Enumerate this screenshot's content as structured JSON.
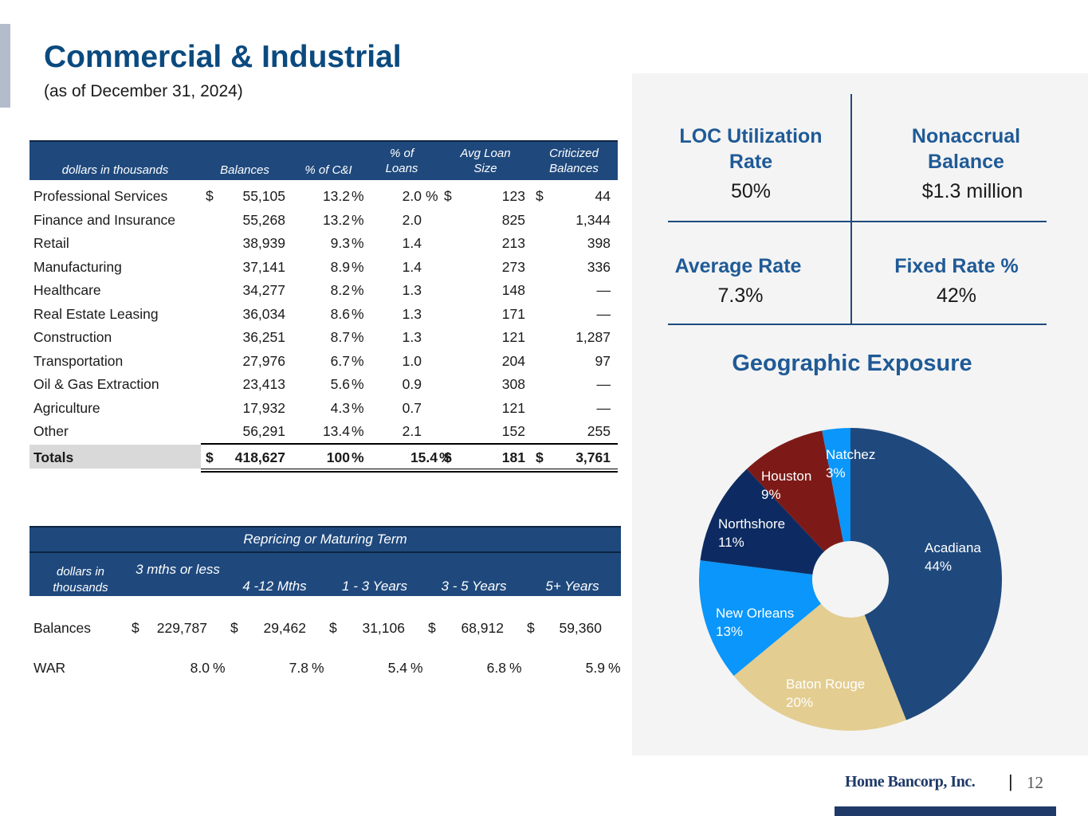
{
  "title": "Commercial & Industrial",
  "subtitle": "(as of December 31, 2024)",
  "industry_table": {
    "headers": {
      "label": "dollars in thousands",
      "balances": "Balances",
      "pct_ci": "% of C&I",
      "pct_loans": "% of Loans",
      "avg_loan": "Avg Loan Size",
      "criticized": "Criticized Balances"
    },
    "rows": [
      {
        "name": "Professional Services",
        "bal_cur": "$",
        "balance": "55,105",
        "pct_ci": "13.2",
        "pct_ci_sym": "%",
        "pct_loans": "2.0",
        "pct_loans_sym": "%",
        "avg_cur": "$",
        "avg": "123",
        "crit_cur": "$",
        "crit": "44"
      },
      {
        "name": "Finance and Insurance",
        "bal_cur": "",
        "balance": "55,268",
        "pct_ci": "13.2",
        "pct_ci_sym": "%",
        "pct_loans": "2.0",
        "pct_loans_sym": "",
        "avg_cur": "",
        "avg": "825",
        "crit_cur": "",
        "crit": "1,344"
      },
      {
        "name": "Retail",
        "bal_cur": "",
        "balance": "38,939",
        "pct_ci": "9.3",
        "pct_ci_sym": "%",
        "pct_loans": "1.4",
        "pct_loans_sym": "",
        "avg_cur": "",
        "avg": "213",
        "crit_cur": "",
        "crit": "398"
      },
      {
        "name": "Manufacturing",
        "bal_cur": "",
        "balance": "37,141",
        "pct_ci": "8.9",
        "pct_ci_sym": "%",
        "pct_loans": "1.4",
        "pct_loans_sym": "",
        "avg_cur": "",
        "avg": "273",
        "crit_cur": "",
        "crit": "336"
      },
      {
        "name": "Healthcare",
        "bal_cur": "",
        "balance": "34,277",
        "pct_ci": "8.2",
        "pct_ci_sym": "%",
        "pct_loans": "1.3",
        "pct_loans_sym": "",
        "avg_cur": "",
        "avg": "148",
        "crit_cur": "",
        "crit": "—"
      },
      {
        "name": "Real Estate Leasing",
        "bal_cur": "",
        "balance": "36,034",
        "pct_ci": "8.6",
        "pct_ci_sym": "%",
        "pct_loans": "1.3",
        "pct_loans_sym": "",
        "avg_cur": "",
        "avg": "171",
        "crit_cur": "",
        "crit": "—"
      },
      {
        "name": "Construction",
        "bal_cur": "",
        "balance": "36,251",
        "pct_ci": "8.7",
        "pct_ci_sym": "%",
        "pct_loans": "1.3",
        "pct_loans_sym": "",
        "avg_cur": "",
        "avg": "121",
        "crit_cur": "",
        "crit": "1,287"
      },
      {
        "name": "Transportation",
        "bal_cur": "",
        "balance": "27,976",
        "pct_ci": "6.7",
        "pct_ci_sym": "%",
        "pct_loans": "1.0",
        "pct_loans_sym": "",
        "avg_cur": "",
        "avg": "204",
        "crit_cur": "",
        "crit": "97"
      },
      {
        "name": "Oil & Gas Extraction",
        "bal_cur": "",
        "balance": "23,413",
        "pct_ci": "5.6",
        "pct_ci_sym": "%",
        "pct_loans": "0.9",
        "pct_loans_sym": "",
        "avg_cur": "",
        "avg": "308",
        "crit_cur": "",
        "crit": "—"
      },
      {
        "name": "Agriculture",
        "bal_cur": "",
        "balance": "17,932",
        "pct_ci": "4.3",
        "pct_ci_sym": "%",
        "pct_loans": "0.7",
        "pct_loans_sym": "",
        "avg_cur": "",
        "avg": "121",
        "crit_cur": "",
        "crit": "—"
      },
      {
        "name": "Other",
        "bal_cur": "",
        "balance": "56,291",
        "pct_ci": "13.4",
        "pct_ci_sym": "%",
        "pct_loans": "2.1",
        "pct_loans_sym": "",
        "avg_cur": "",
        "avg": "152",
        "crit_cur": "",
        "crit": "255"
      }
    ],
    "totals": {
      "name": "Totals",
      "bal_cur": "$",
      "balance": "418,627",
      "pct_ci": "100",
      "pct_ci_sym": "%",
      "pct_loans": "15.4",
      "pct_loans_sym": "%",
      "avg_cur": "$",
      "avg": "181",
      "crit_cur": "$",
      "crit": "3,761"
    }
  },
  "repricing_table": {
    "group_header": "Repricing or Maturing Term",
    "headers": {
      "label": "dollars in thousands",
      "c1": "3 mths or less",
      "c2": "4 -12 Mths",
      "c3": "1 - 3 Years",
      "c4": "3 - 5 Years",
      "c5": "5+ Years"
    },
    "balances": {
      "label": "Balances",
      "cur": "$",
      "v1": "229,787",
      "v2": "29,462",
      "v3": "31,106",
      "v4": "68,912",
      "v5": "59,360"
    },
    "war": {
      "label": "WAR",
      "v1": "8.0",
      "v2": "7.8",
      "v3": "5.4",
      "v4": "6.8",
      "v5": "5.9",
      "sym": "%"
    }
  },
  "metrics": {
    "loc_label": "LOC Utilization Rate",
    "loc_value": "50%",
    "nonaccrual_label": "Nonaccrual Balance",
    "nonaccrual_value": "$1.3 million",
    "avg_rate_label": "Average Rate",
    "avg_rate_value": "7.3%",
    "fixed_label": "Fixed Rate %",
    "fixed_value": "42%"
  },
  "geo_title": "Geographic Exposure",
  "chart_data": {
    "type": "pie",
    "donut": true,
    "categories": [
      "Acadiana",
      "Baton Rouge",
      "New Orleans",
      "Northshore",
      "Houston",
      "Natchez"
    ],
    "values": [
      44,
      20,
      13,
      11,
      9,
      3
    ],
    "labels": [
      "44%",
      "20%",
      "13%",
      "11%",
      "9%",
      "3%"
    ],
    "colors": [
      "#1f497d",
      "#e3cd91",
      "#0a96fa",
      "#0d2b62",
      "#7d1a17",
      "#0a96fa"
    ],
    "title": "Geographic Exposure"
  },
  "footer": {
    "logo_text": "Home Bancorp, Inc.",
    "separator": "|",
    "page_number": "12"
  }
}
